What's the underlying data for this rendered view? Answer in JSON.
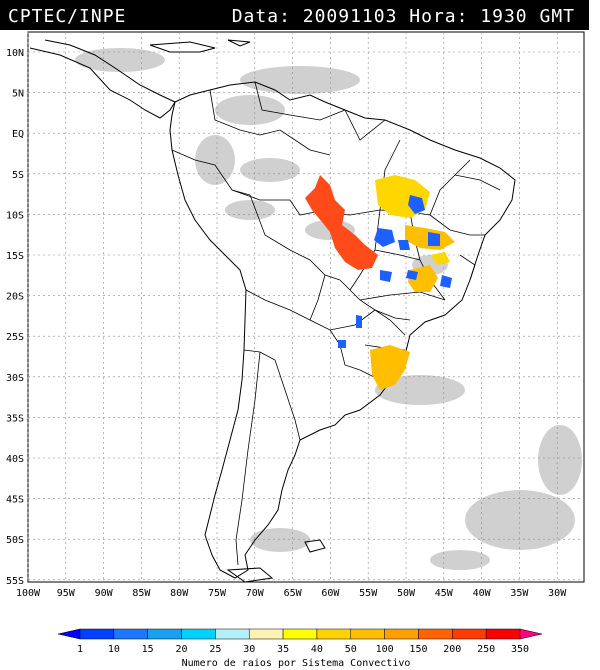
{
  "header": {
    "left": "CPTEC/INPE",
    "right": "Data: 20091103 Hora: 1930 GMT"
  },
  "lat_labels": [
    "10N",
    "5N",
    "EQ",
    "5S",
    "10S",
    "15S",
    "20S",
    "25S",
    "30S",
    "35S",
    "40S",
    "45S",
    "50S",
    "55S"
  ],
  "lon_labels": [
    "100W",
    "95W",
    "90W",
    "85W",
    "80W",
    "75W",
    "70W",
    "65W",
    "60W",
    "55W",
    "50W",
    "45W",
    "40W",
    "35W",
    "30W"
  ],
  "legend": {
    "values": [
      "1",
      "10",
      "15",
      "20",
      "25",
      "30",
      "35",
      "40",
      "50",
      "100",
      "150",
      "200",
      "250",
      "350"
    ],
    "colors": [
      "#0000ff",
      "#0040ff",
      "#1e78ff",
      "#19a0f0",
      "#00d2ff",
      "#b4f0fa",
      "#fff0b4",
      "#ffff00",
      "#ffd200",
      "#ffbe00",
      "#ffa000",
      "#ff6400",
      "#ff3c00",
      "#ff0000",
      "#ff0080"
    ],
    "caption": "Numero de raios por Sistema Convectivo"
  },
  "colors": {
    "cloud": "#c8c8c8",
    "land": "#ffffff",
    "border": "#000000"
  }
}
